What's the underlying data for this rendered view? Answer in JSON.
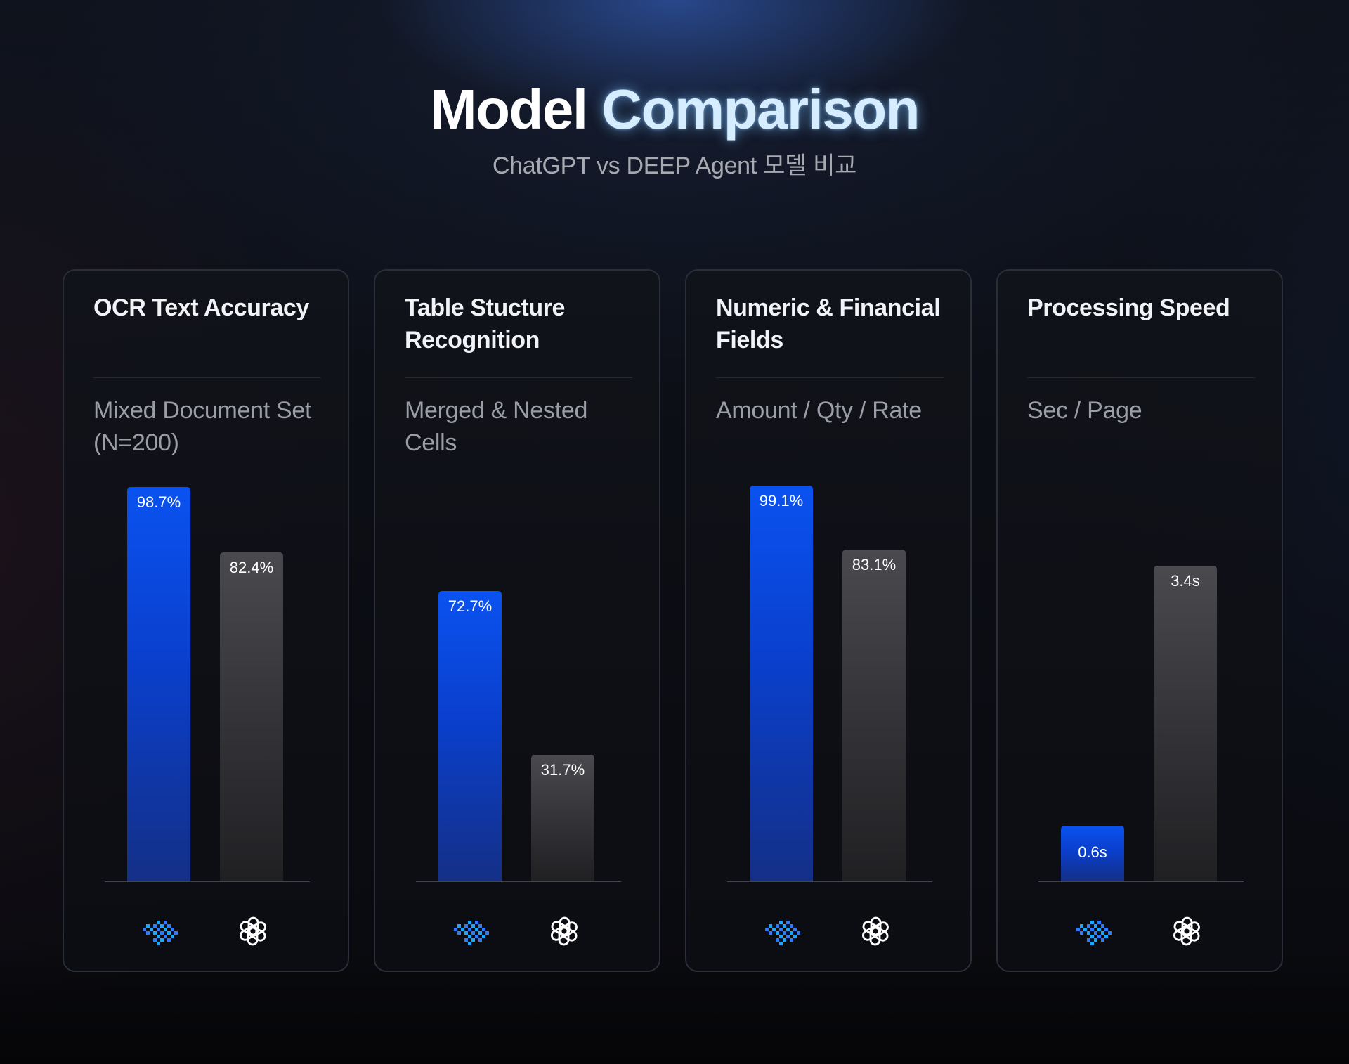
{
  "header": {
    "title_part1": "Model",
    "title_part2": "Comparison",
    "subtitle": "ChatGPT vs DEEP Agent 모델 비교"
  },
  "colors": {
    "deep_agent": "#0a52f0",
    "chatgpt": "#3a3a3e",
    "title_glow": "#d6ecff"
  },
  "icons": {
    "deep_agent": "deep-agent-logo-icon",
    "chatgpt": "chatgpt-logo-icon"
  },
  "chart_data": [
    {
      "type": "bar",
      "title": "OCR Text Accuracy",
      "subtitle": "Mixed Document Set (N=200)",
      "categories": [
        "DEEP Agent",
        "ChatGPT"
      ],
      "values": [
        98.7,
        82.4
      ],
      "labels": [
        "98.7%",
        "82.4%"
      ],
      "ylim": [
        0,
        100
      ]
    },
    {
      "type": "bar",
      "title": "Table Stucture Recognition",
      "subtitle": "Merged & Nested Cells",
      "categories": [
        "DEEP Agent",
        "ChatGPT"
      ],
      "values": [
        72.7,
        31.7
      ],
      "labels": [
        "72.7%",
        "31.7%"
      ],
      "ylim": [
        0,
        100
      ]
    },
    {
      "type": "bar",
      "title": "Numeric & Financial Fields",
      "subtitle": "Amount / Qty / Rate",
      "categories": [
        "DEEP Agent",
        "ChatGPT"
      ],
      "values": [
        99.1,
        83.1
      ],
      "labels": [
        "99.1%",
        "83.1%"
      ],
      "ylim": [
        0,
        100
      ]
    },
    {
      "type": "bar",
      "title": "Processing Speed",
      "subtitle": "Sec / Page",
      "categories": [
        "DEEP Agent",
        "ChatGPT"
      ],
      "values": [
        0.6,
        3.4
      ],
      "labels": [
        "0.6s",
        "3.4s"
      ],
      "ylim": [
        0,
        4.3
      ]
    }
  ]
}
